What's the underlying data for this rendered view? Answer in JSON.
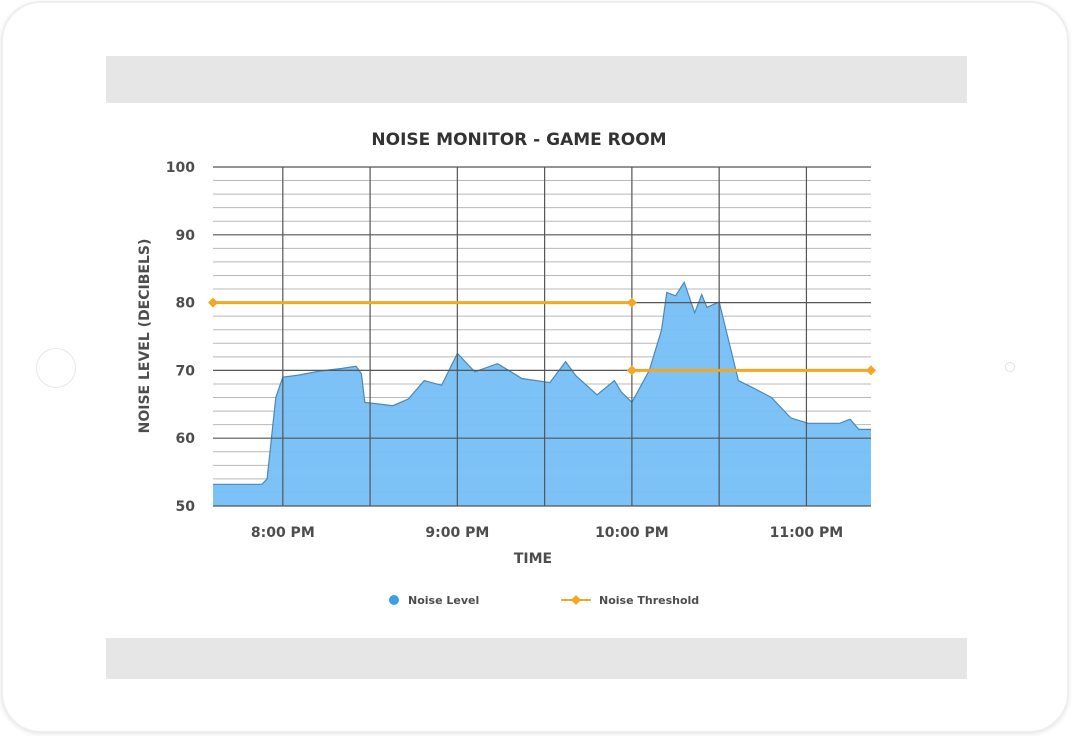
{
  "chart_data": {
    "type": "area",
    "title": "NOISE MONITOR - GAME ROOM",
    "xlabel": "TIME",
    "ylabel": "NOISE LEVEL (DECIBELS)",
    "ylim": [
      50,
      100
    ],
    "yticks": [
      50,
      60,
      70,
      80,
      90,
      100
    ],
    "x_unit": "hours",
    "xlim": [
      19.6,
      23.37
    ],
    "xticks": [
      {
        "value": 20,
        "label": "8:00 PM"
      },
      {
        "value": 21,
        "label": "9:00 PM"
      },
      {
        "value": 22,
        "label": "10:00 PM"
      },
      {
        "value": 23,
        "label": "11:00 PM"
      }
    ],
    "grid": true,
    "legend_position": "bottom",
    "series": [
      {
        "name": "Noise Level",
        "type": "area",
        "color": "#76bff5",
        "stroke": "#4a88b8",
        "points": [
          [
            19.6,
            53.2
          ],
          [
            19.88,
            53.2
          ],
          [
            19.91,
            54
          ],
          [
            19.96,
            66
          ],
          [
            20.0,
            69
          ],
          [
            20.09,
            69.3
          ],
          [
            20.21,
            69.9
          ],
          [
            20.34,
            70.3
          ],
          [
            20.42,
            70.6
          ],
          [
            20.45,
            69.5
          ],
          [
            20.47,
            65.3
          ],
          [
            20.63,
            64.8
          ],
          [
            20.72,
            65.8
          ],
          [
            20.81,
            68.5
          ],
          [
            20.91,
            67.8
          ],
          [
            21.0,
            72.5
          ],
          [
            21.1,
            69.8
          ],
          [
            21.23,
            71.0
          ],
          [
            21.37,
            68.8
          ],
          [
            21.53,
            68.2
          ],
          [
            21.62,
            71.3
          ],
          [
            21.68,
            69.2
          ],
          [
            21.8,
            66.4
          ],
          [
            21.9,
            68.5
          ],
          [
            21.94,
            66.8
          ],
          [
            22.0,
            65.3
          ],
          [
            22.1,
            70.0
          ],
          [
            22.17,
            76.0
          ],
          [
            22.2,
            81.5
          ],
          [
            22.25,
            81.0
          ],
          [
            22.3,
            83.0
          ],
          [
            22.36,
            78.5
          ],
          [
            22.4,
            81.2
          ],
          [
            22.43,
            79.3
          ],
          [
            22.5,
            80.1
          ],
          [
            22.61,
            68.5
          ],
          [
            22.69,
            67.5
          ],
          [
            22.8,
            66.0
          ],
          [
            22.91,
            63.0
          ],
          [
            23.01,
            62.2
          ],
          [
            23.1,
            62.2
          ],
          [
            23.19,
            62.2
          ],
          [
            23.25,
            62.8
          ],
          [
            23.3,
            61.3
          ],
          [
            23.37,
            61.3
          ]
        ]
      },
      {
        "name": "Noise Threshold",
        "type": "line",
        "color": "#f5a623",
        "segments": [
          [
            [
              19.6,
              80
            ],
            [
              22.0,
              80
            ]
          ],
          [
            [
              22.0,
              70
            ],
            [
              23.37,
              70
            ]
          ]
        ]
      }
    ]
  }
}
